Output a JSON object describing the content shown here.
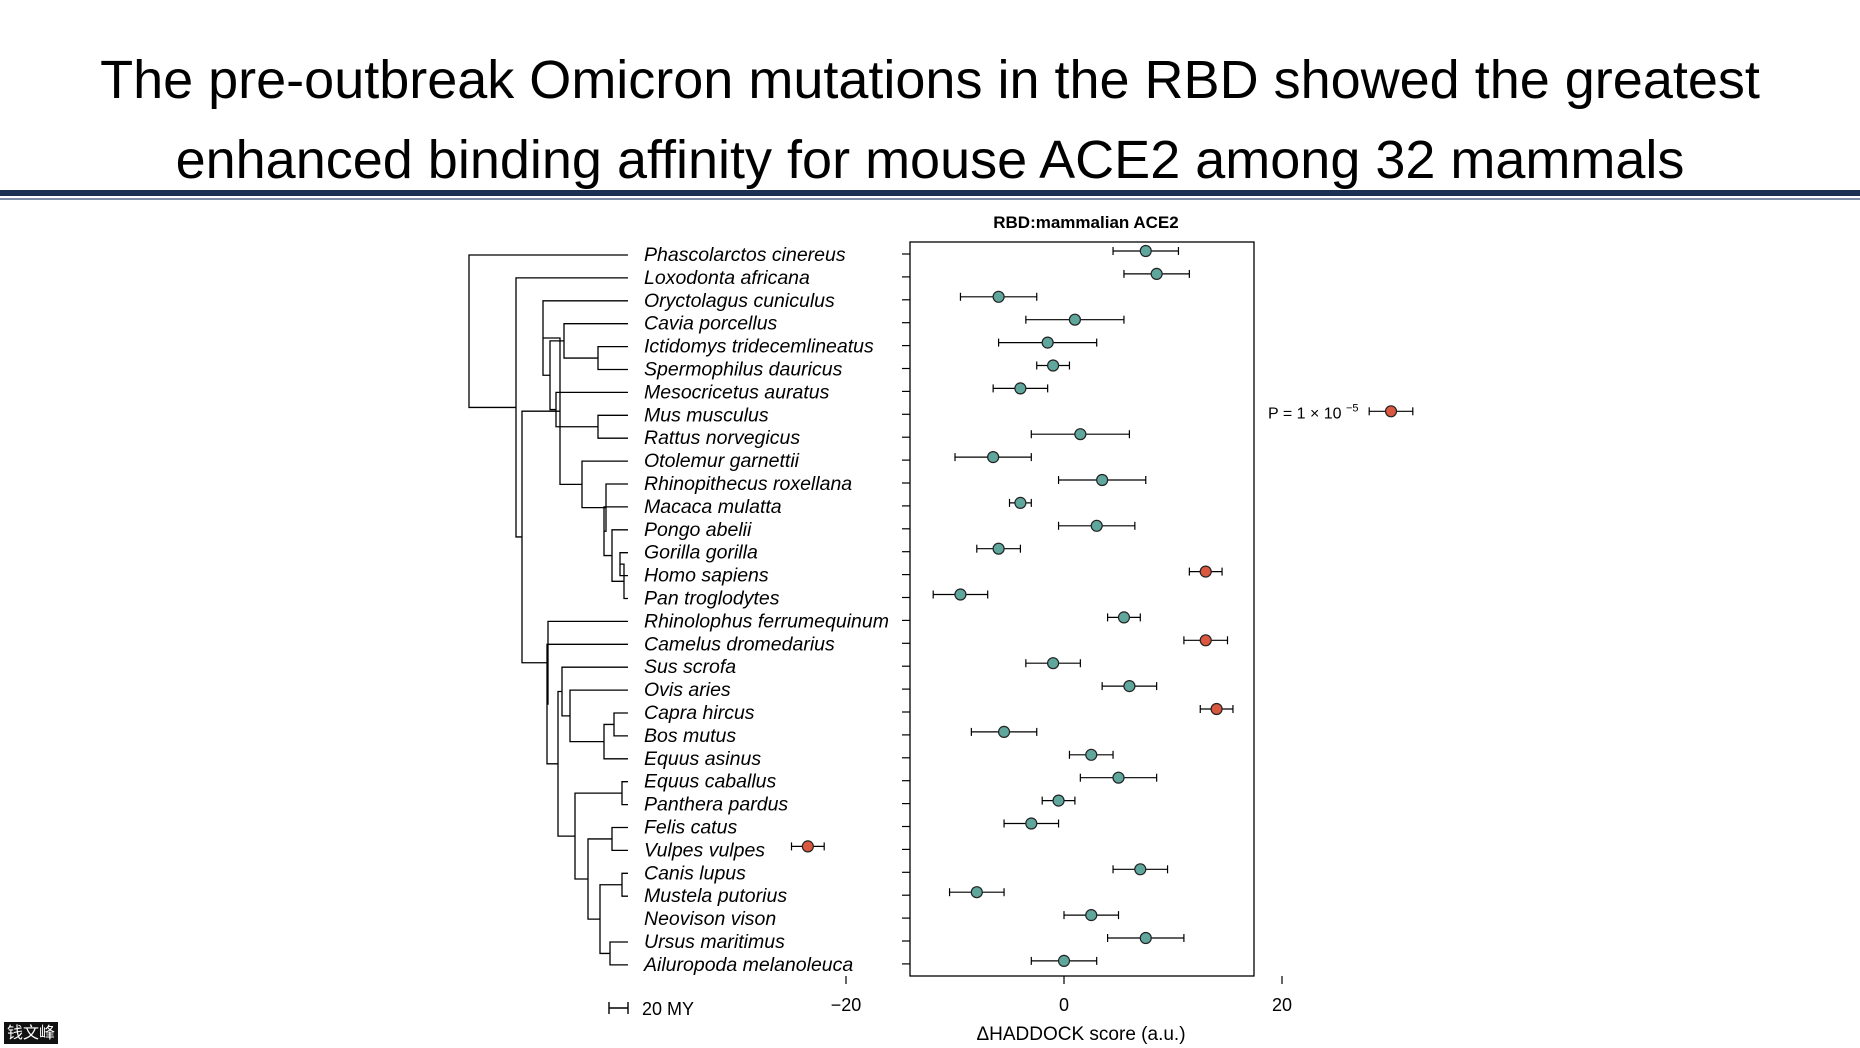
{
  "slide": {
    "title_line1": "The pre-outbreak Omicron mutations in the RBD showed the greatest",
    "title_line2": "enhanced binding affinity for mouse ACE2 among 32 mammals"
  },
  "scale_bar_label": "20 MY",
  "watermark": "钱文峰",
  "colors": {
    "normal_point": "#5fa69c",
    "significant_point": "#d9583f",
    "rule": "#1b2f55"
  },
  "chart_data": {
    "type": "scatter",
    "title": "RBD:mammalian ACE2",
    "xlabel": "ΔHADDOCK score (a.u.)",
    "xlim": [
      -25,
      35
    ],
    "xticks": [
      -20,
      0,
      20
    ],
    "grid": false,
    "annotation": {
      "text": "P = 1 × 10",
      "superscript": "−5",
      "species": "Mus musculus"
    },
    "species": [
      {
        "name": "Phascolarctos cinereus",
        "value": 7.5,
        "error": 3,
        "significant": false
      },
      {
        "name": "Loxodonta africana",
        "value": 8.5,
        "error": 3,
        "significant": false
      },
      {
        "name": "Oryctolagus cuniculus",
        "value": -6,
        "error": 3.5,
        "significant": false
      },
      {
        "name": "Cavia porcellus",
        "value": 1,
        "error": 4.5,
        "significant": false
      },
      {
        "name": "Ictidomys tridecemlineatus",
        "value": -1.5,
        "error": 4.5,
        "significant": false
      },
      {
        "name": "Spermophilus dauricus",
        "value": -1,
        "error": 1.5,
        "significant": false
      },
      {
        "name": "Mesocricetus auratus",
        "value": -4,
        "error": 2.5,
        "significant": false
      },
      {
        "name": "Mus musculus",
        "value": 30,
        "error": 2,
        "significant": true
      },
      {
        "name": "Rattus norvegicus",
        "value": 1.5,
        "error": 4.5,
        "significant": false
      },
      {
        "name": "Otolemur garnettii",
        "value": -6.5,
        "error": 3.5,
        "significant": false
      },
      {
        "name": "Rhinopithecus roxellana",
        "value": 3.5,
        "error": 4,
        "significant": false
      },
      {
        "name": "Macaca mulatta",
        "value": -4,
        "error": 1,
        "significant": false
      },
      {
        "name": "Pongo abelii",
        "value": 3,
        "error": 3.5,
        "significant": false
      },
      {
        "name": "Gorilla gorilla",
        "value": -6,
        "error": 2,
        "significant": false
      },
      {
        "name": "Homo sapiens",
        "value": 13,
        "error": 1.5,
        "significant": true
      },
      {
        "name": "Pan troglodytes",
        "value": -9.5,
        "error": 2.5,
        "significant": false
      },
      {
        "name": "Rhinolophus ferrumequinum",
        "value": 5.5,
        "error": 1.5,
        "significant": false
      },
      {
        "name": "Camelus dromedarius",
        "value": 13,
        "error": 2,
        "significant": true
      },
      {
        "name": "Sus scrofa",
        "value": -1,
        "error": 2.5,
        "significant": false
      },
      {
        "name": "Ovis aries",
        "value": 6,
        "error": 2.5,
        "significant": false
      },
      {
        "name": "Capra hircus",
        "value": 14,
        "error": 1.5,
        "significant": true
      },
      {
        "name": "Bos mutus",
        "value": -5.5,
        "error": 3,
        "significant": false
      },
      {
        "name": "Equus asinus",
        "value": 2.5,
        "error": 2,
        "significant": false
      },
      {
        "name": "Equus caballus",
        "value": 5,
        "error": 3.5,
        "significant": false
      },
      {
        "name": "Panthera pardus",
        "value": -0.5,
        "error": 1.5,
        "significant": false
      },
      {
        "name": "Felis catus",
        "value": -3,
        "error": 2.5,
        "significant": false
      },
      {
        "name": "Vulpes vulpes",
        "value": -23.5,
        "error": 1.5,
        "significant": true
      },
      {
        "name": "Canis lupus",
        "value": 7,
        "error": 2.5,
        "significant": false
      },
      {
        "name": "Mustela putorius",
        "value": -8,
        "error": 2.5,
        "significant": false
      },
      {
        "name": "Neovison vison",
        "value": 2.5,
        "error": 2.5,
        "significant": false
      },
      {
        "name": "Ursus maritimus",
        "value": 7.5,
        "error": 3.5,
        "significant": false
      },
      {
        "name": "Ailuropoda melanoleuca",
        "value": 0,
        "error": 3,
        "significant": false
      }
    ]
  }
}
